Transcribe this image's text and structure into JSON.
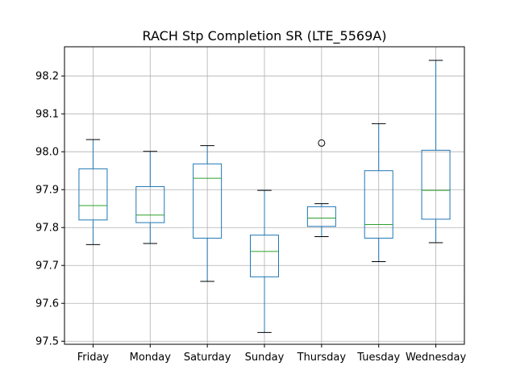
{
  "chart_data": {
    "type": "box",
    "title": "RACH Stp Completion SR (LTE_5569A)",
    "xlabel": "",
    "ylabel": "",
    "grid": true,
    "ylim": [
      97.492,
      98.277
    ],
    "yticks": [
      97.5,
      97.6,
      97.7,
      97.8,
      97.9,
      98.0,
      98.1,
      98.2
    ],
    "categories": [
      "Friday",
      "Monday",
      "Saturday",
      "Sunday",
      "Thursday",
      "Tuesday",
      "Wednesday"
    ],
    "boxes": [
      {
        "category": "Friday",
        "whisker_low": 97.755,
        "q1": 97.82,
        "median": 97.858,
        "q3": 97.955,
        "whisker_high": 98.032,
        "outliers": []
      },
      {
        "category": "Monday",
        "whisker_low": 97.758,
        "q1": 97.813,
        "median": 97.833,
        "q3": 97.908,
        "whisker_high": 98.001,
        "outliers": []
      },
      {
        "category": "Saturday",
        "whisker_low": 97.658,
        "q1": 97.772,
        "median": 97.93,
        "q3": 97.968,
        "whisker_high": 98.016,
        "outliers": []
      },
      {
        "category": "Sunday",
        "whisker_low": 97.523,
        "q1": 97.67,
        "median": 97.737,
        "q3": 97.78,
        "whisker_high": 97.898,
        "outliers": []
      },
      {
        "category": "Thursday",
        "whisker_low": 97.776,
        "q1": 97.803,
        "median": 97.825,
        "q3": 97.855,
        "whisker_high": 97.863,
        "outliers": [
          98.023
        ]
      },
      {
        "category": "Tuesday",
        "whisker_low": 97.71,
        "q1": 97.772,
        "median": 97.808,
        "q3": 97.95,
        "whisker_high": 98.074,
        "outliers": []
      },
      {
        "category": "Wednesday",
        "whisker_low": 97.76,
        "q1": 97.822,
        "median": 97.898,
        "q3": 98.004,
        "whisker_high": 98.241,
        "outliers": []
      }
    ],
    "colors": {
      "box": "#1f77b4",
      "median": "#2ca02c",
      "whisker_cap": "#000000",
      "grid": "#b0b0b0",
      "axes": "#000000"
    }
  }
}
